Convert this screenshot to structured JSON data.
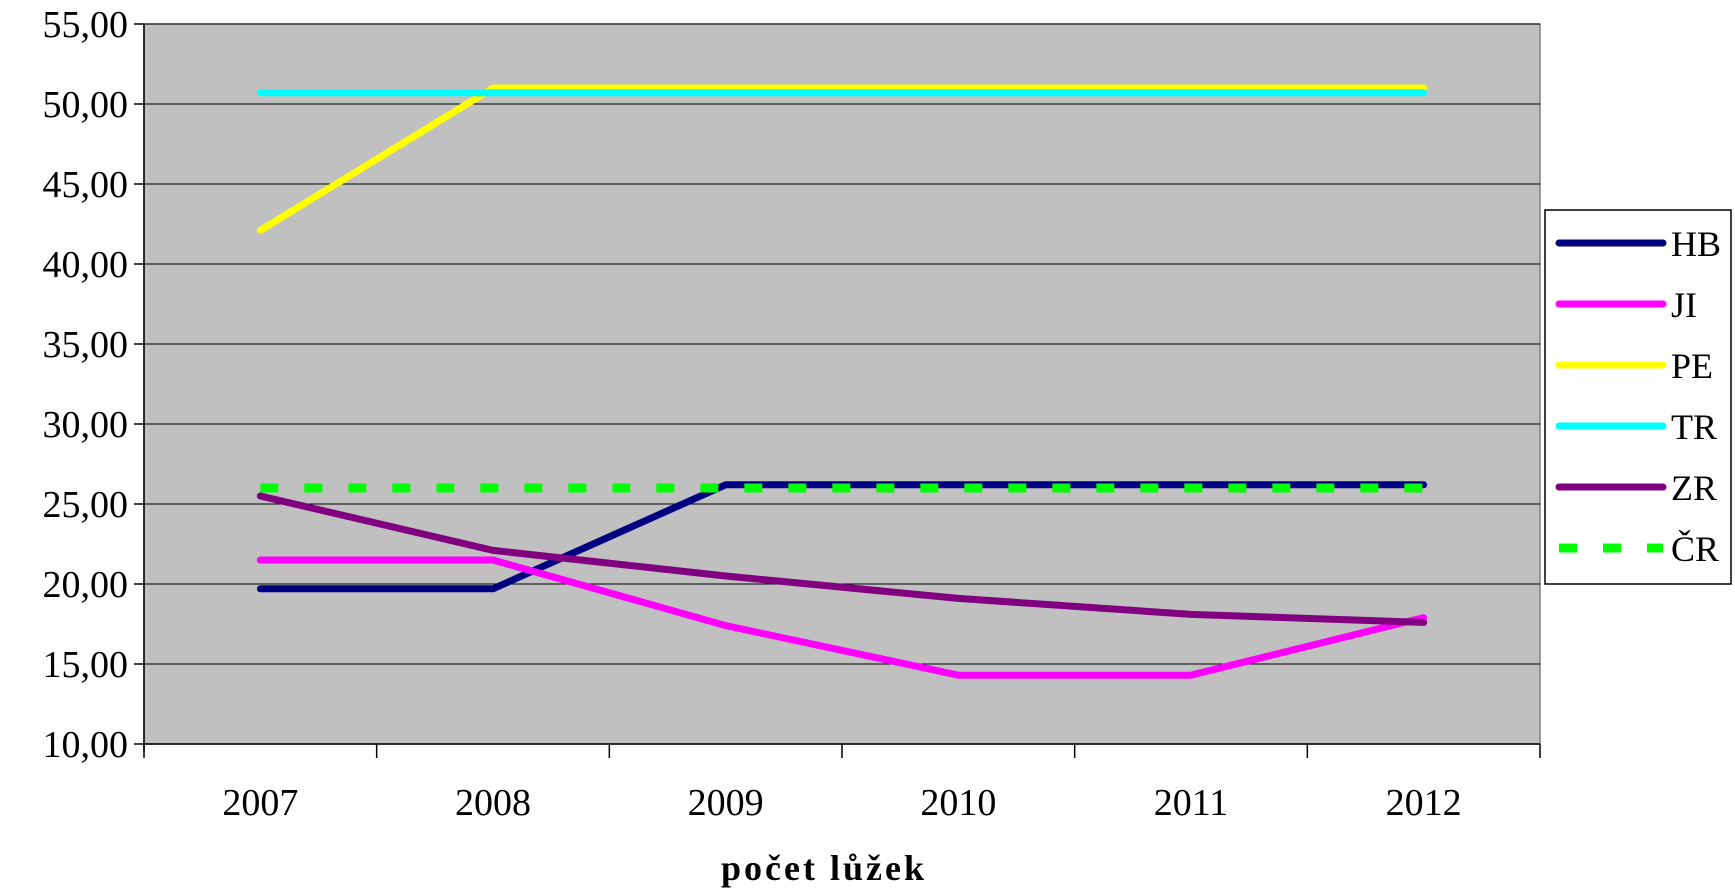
{
  "chart_data": {
    "type": "line",
    "title": "",
    "xlabel": "počet lůžek",
    "ylabel": "",
    "categories": [
      "2007",
      "2008",
      "2009",
      "2010",
      "2011",
      "2012"
    ],
    "ylim": [
      10,
      55
    ],
    "yticks": [
      10,
      15,
      20,
      25,
      30,
      35,
      40,
      45,
      50,
      55
    ],
    "ytick_labels": [
      "10,00",
      "15,00",
      "20,00",
      "25,00",
      "30,00",
      "35,00",
      "40,00",
      "45,00",
      "50,00",
      "55,00"
    ],
    "grid": "horizontal",
    "plot_background": "#c0c0c0",
    "legend_position": "right",
    "series": [
      {
        "name": "HB",
        "color": "#000080",
        "dashed": false,
        "values": [
          19.7,
          19.7,
          26.2,
          26.2,
          26.2,
          26.2
        ]
      },
      {
        "name": "JI",
        "color": "#ff00ff",
        "dashed": false,
        "values": [
          21.5,
          21.5,
          17.4,
          14.3,
          14.3,
          17.9
        ]
      },
      {
        "name": "PE",
        "color": "#ffff00",
        "dashed": false,
        "values": [
          42.1,
          51.0,
          51.0,
          51.0,
          51.0,
          51.0
        ]
      },
      {
        "name": "TR",
        "color": "#00ffff",
        "dashed": false,
        "values": [
          50.7,
          50.7,
          50.7,
          50.7,
          50.7,
          50.7
        ]
      },
      {
        "name": "ZR",
        "color": "#800080",
        "dashed": false,
        "values": [
          25.5,
          22.1,
          20.5,
          19.1,
          18.1,
          17.6
        ]
      },
      {
        "name": "ČR",
        "color": "#00ff00",
        "dashed": true,
        "values": [
          26.0,
          26.0,
          26.0,
          26.0,
          26.0,
          26.0
        ]
      }
    ]
  }
}
